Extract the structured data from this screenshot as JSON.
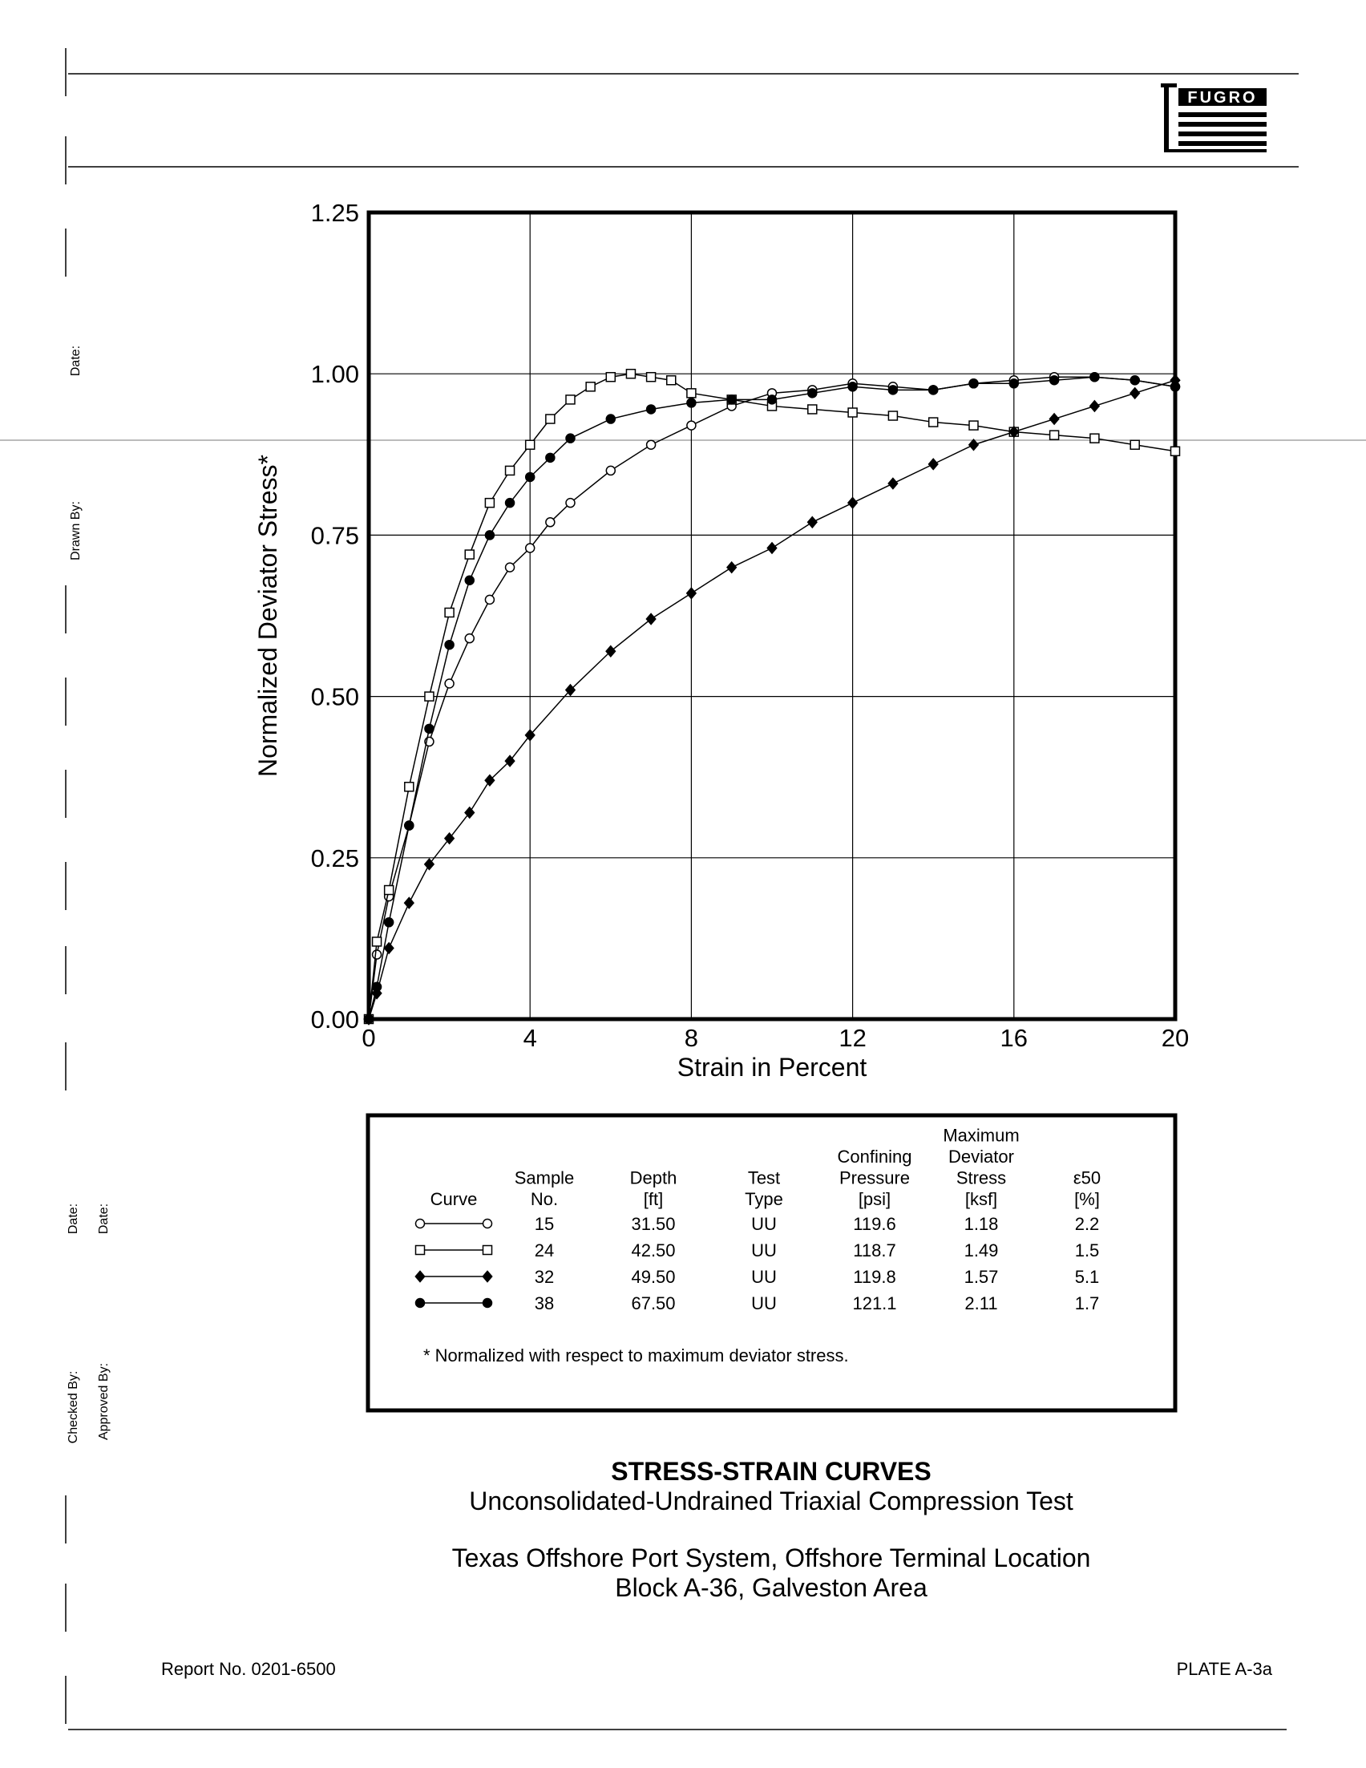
{
  "header": {
    "logo": "FUGRO"
  },
  "sidebar": {
    "date_1": "Date:",
    "drawn_by": "Drawn By:",
    "date_2": "Date:",
    "date_3": "Date:",
    "checked_by": "Checked By:",
    "approved_by": "Approved By:"
  },
  "chart_data": {
    "type": "line",
    "xlabel": "Strain in Percent",
    "ylabel": "Normalized Deviator Stress*",
    "xlim": [
      0,
      20
    ],
    "ylim": [
      0,
      1.25
    ],
    "xticks": [
      0,
      4,
      8,
      12,
      16,
      20
    ],
    "yticks": [
      {
        "value": 0,
        "label": "0.00"
      },
      0.25,
      {
        "value": 0.5,
        "label": "0.50"
      },
      0.75,
      {
        "value": 1,
        "label": "1.00"
      },
      1.25
    ],
    "grid": true,
    "series": [
      {
        "marker": "circle-open",
        "color": "#000000",
        "x": [
          0,
          0.2,
          0.5,
          1,
          1.5,
          2,
          2.5,
          3,
          3.5,
          4,
          4.5,
          5,
          6,
          7,
          8,
          9,
          10,
          11,
          12,
          13,
          14,
          15,
          16,
          17,
          18,
          19,
          20
        ],
        "values": [
          0,
          0.1,
          0.19,
          0.3,
          0.43,
          0.52,
          0.59,
          0.65,
          0.7,
          0.73,
          0.77,
          0.8,
          0.85,
          0.89,
          0.92,
          0.95,
          0.97,
          0.975,
          0.985,
          0.98,
          0.975,
          0.985,
          0.99,
          0.995,
          0.995,
          0.99,
          0.98
        ]
      },
      {
        "marker": "square-open",
        "color": "#000000",
        "x": [
          0,
          0.2,
          0.5,
          1,
          1.5,
          2,
          2.5,
          3,
          3.5,
          4,
          4.5,
          5,
          5.5,
          6,
          6.5,
          7,
          7.5,
          8,
          9,
          10,
          11,
          12,
          13,
          14,
          15,
          16,
          17,
          18,
          19,
          20
        ],
        "values": [
          0,
          0.12,
          0.2,
          0.36,
          0.5,
          0.63,
          0.72,
          0.8,
          0.85,
          0.89,
          0.93,
          0.96,
          0.98,
          0.995,
          1.0,
          0.995,
          0.99,
          0.97,
          0.96,
          0.95,
          0.945,
          0.94,
          0.935,
          0.925,
          0.92,
          0.91,
          0.905,
          0.9,
          0.89,
          0.88
        ]
      },
      {
        "marker": "diamond",
        "color": "#000000",
        "x": [
          0,
          0.2,
          0.5,
          1,
          1.5,
          2,
          2.5,
          3,
          3.5,
          4,
          5,
          6,
          7,
          8,
          9,
          10,
          11,
          12,
          13,
          14,
          15,
          16,
          17,
          18,
          19,
          20
        ],
        "values": [
          0,
          0.04,
          0.11,
          0.18,
          0.24,
          0.28,
          0.32,
          0.37,
          0.4,
          0.44,
          0.51,
          0.57,
          0.62,
          0.66,
          0.7,
          0.73,
          0.77,
          0.8,
          0.83,
          0.86,
          0.89,
          0.91,
          0.93,
          0.95,
          0.97,
          0.99
        ]
      },
      {
        "marker": "circle",
        "color": "#000000",
        "x": [
          0,
          0.2,
          0.5,
          1,
          1.5,
          2,
          2.5,
          3,
          3.5,
          4,
          4.5,
          5,
          6,
          7,
          8,
          9,
          10,
          11,
          12,
          13,
          14,
          15,
          16,
          17,
          18,
          19,
          20
        ],
        "values": [
          0,
          0.05,
          0.15,
          0.3,
          0.45,
          0.58,
          0.68,
          0.75,
          0.8,
          0.84,
          0.87,
          0.9,
          0.93,
          0.945,
          0.955,
          0.96,
          0.96,
          0.97,
          0.98,
          0.975,
          0.975,
          0.985,
          0.985,
          0.99,
          0.995,
          0.99,
          0.98
        ]
      }
    ]
  },
  "table": {
    "header": [
      [
        "Curve"
      ],
      [
        "Sample",
        "No."
      ],
      [
        "Depth",
        "[ft]"
      ],
      [
        "Test",
        "Type"
      ],
      [
        "Confining",
        "Pressure",
        "[psi]"
      ],
      [
        "Maximum",
        "Deviator",
        "Stress",
        "[ksf]"
      ],
      [
        "ε50",
        "[%]"
      ]
    ],
    "rows": [
      [
        "15",
        "31.50",
        "UU",
        "119.6",
        "1.18",
        "2.2"
      ],
      [
        "24",
        "42.50",
        "UU",
        "118.7",
        "1.49",
        "1.5"
      ],
      [
        "32",
        "49.50",
        "UU",
        "119.8",
        "1.57",
        "5.1"
      ],
      [
        "38",
        "67.50",
        "UU",
        "121.1",
        "2.11",
        "1.7"
      ]
    ],
    "footnote": "* Normalized with respect to maximum deviator stress."
  },
  "title": "STRESS-STRAIN CURVES",
  "subtitle": "Unconsolidated-Undrained Triaxial Compression Test",
  "location_1": "Texas Offshore Port System, Offshore Terminal Location",
  "location_2": "Block A-36, Galveston Area",
  "footer": {
    "report": "Report No. 0201-6500",
    "plate": "PLATE A-3a"
  }
}
